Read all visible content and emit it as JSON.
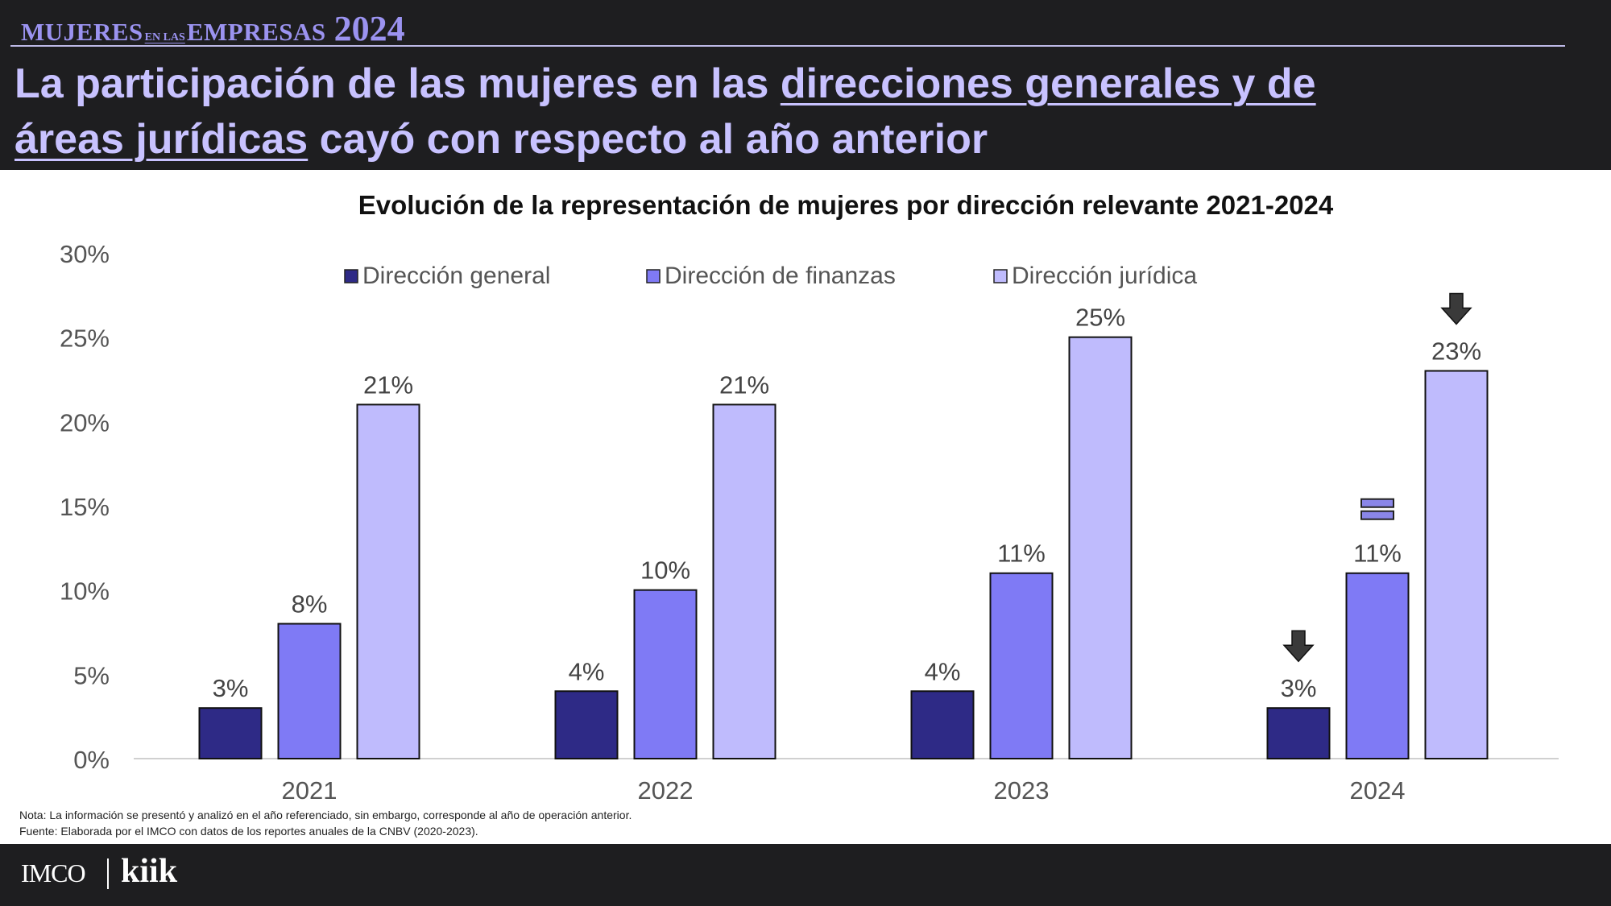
{
  "brand": {
    "part1": "MUJERES",
    "part2": "EN LAS",
    "part3": "EMPRESAS",
    "year": "2024"
  },
  "headline": {
    "pre": "La participación de las mujeres en las ",
    "highlight1": "direcciones generales y de",
    "highlight2": "áreas jurídicas",
    "post": " cayó con respecto al año anterior"
  },
  "colors": {
    "header_bg": "#1e1e20",
    "headline_text": "#c8c2ff",
    "series_general": "#2e2a86",
    "series_finanzas": "#7f7af5",
    "series_juridica": "#bfbbfd"
  },
  "chart_data": {
    "type": "bar",
    "title": "Evolución de la representación de mujeres por dirección relevante 2021-2024",
    "categories": [
      "2021",
      "2022",
      "2023",
      "2024"
    ],
    "series": [
      {
        "name": "Dirección general",
        "values": [
          3,
          4,
          4,
          3
        ],
        "labels": [
          "3%",
          "4%",
          "4%",
          "3%"
        ],
        "color": "#2e2a86"
      },
      {
        "name": "Dirección de finanzas",
        "values": [
          8,
          10,
          11,
          11
        ],
        "labels": [
          "8%",
          "10%",
          "11%",
          "11%"
        ],
        "color": "#7f7af5"
      },
      {
        "name": "Dirección jurídica",
        "values": [
          21,
          21,
          25,
          23
        ],
        "labels": [
          "21%",
          "21%",
          "25%",
          "23%"
        ],
        "color": "#bfbbfd"
      }
    ],
    "ylim": [
      0,
      30
    ],
    "yticks": [
      0,
      5,
      10,
      15,
      20,
      25,
      30
    ],
    "ytick_labels": [
      "0%",
      "5%",
      "10%",
      "15%",
      "20%",
      "25%",
      "30%"
    ],
    "grid": false,
    "legend_position": "top-center",
    "annotations": [
      {
        "category": "2024",
        "series": "Dirección general",
        "icon": "arrow-down-icon"
      },
      {
        "category": "2024",
        "series": "Dirección de finanzas",
        "icon": "equals-icon"
      },
      {
        "category": "2024",
        "series": "Dirección jurídica",
        "icon": "arrow-down-icon"
      }
    ]
  },
  "notes": {
    "nota": "Nota: La información se presentó y analizó en el año referenciado, sin embargo, corresponde al año de operación anterior.",
    "fuente": "Fuente: Elaborada por el IMCO con datos de los reportes anuales de la CNBV (2020-2023)."
  },
  "footer": {
    "logo1": "IMCO",
    "logo2": "kiik"
  }
}
